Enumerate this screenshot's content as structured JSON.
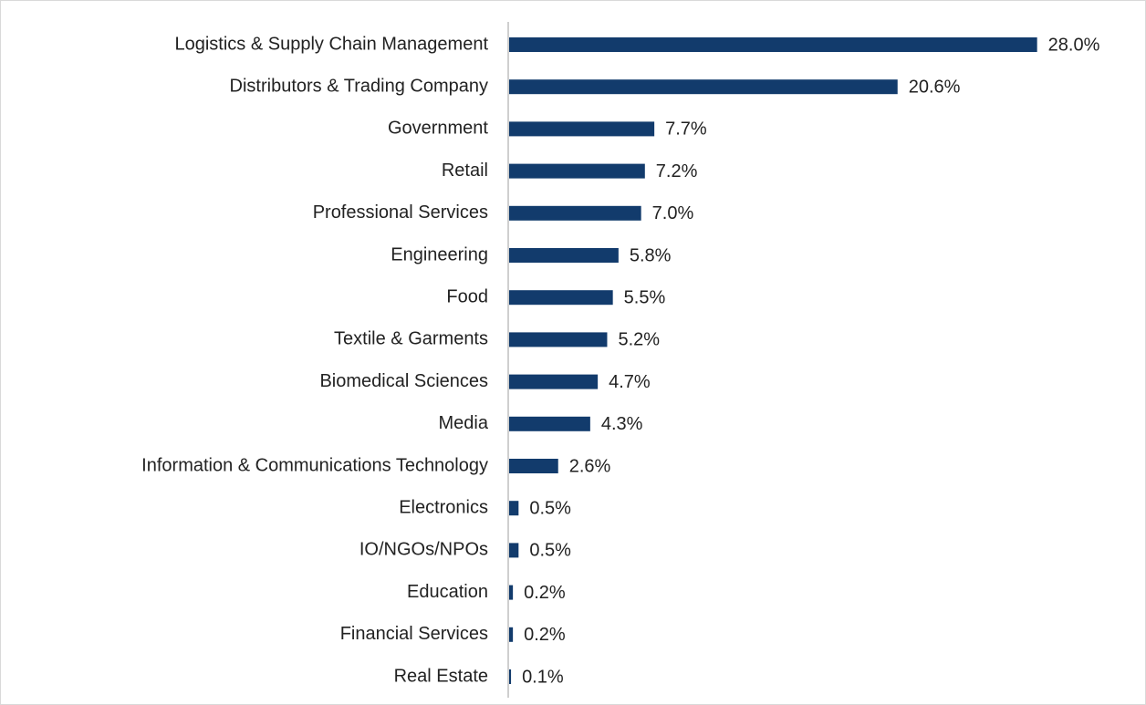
{
  "chart_data": {
    "type": "hbar",
    "categories": [
      "Logistics & Supply Chain Management",
      "Distributors & Trading Company",
      "Government",
      "Retail",
      "Professional Services",
      "Engineering",
      "Food",
      "Textile & Garments",
      "Biomedical Sciences",
      "Media",
      "Information & Communications Technology",
      "Electronics",
      "IO/NGOs/NPOs",
      "Education",
      "Financial Services",
      "Real Estate"
    ],
    "values": [
      28.0,
      20.6,
      7.7,
      7.2,
      7.0,
      5.8,
      5.5,
      5.2,
      4.7,
      4.3,
      2.6,
      0.5,
      0.5,
      0.2,
      0.2,
      0.1
    ],
    "value_labels": [
      "28.0%",
      "20.6%",
      "7.7%",
      "7.2%",
      "7.0%",
      "5.8%",
      "5.5%",
      "5.2%",
      "4.7%",
      "4.3%",
      "2.6%",
      "0.5%",
      "0.5%",
      "0.2%",
      "0.2%",
      "0.1%"
    ],
    "color": "#123b6c",
    "xlim": [
      0,
      30
    ]
  }
}
